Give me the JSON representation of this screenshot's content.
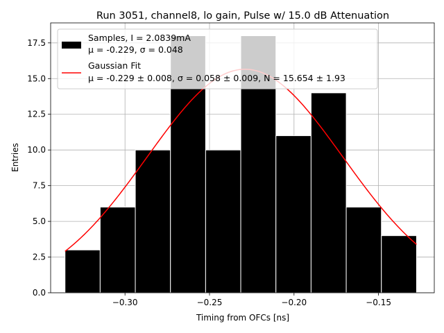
{
  "chart_data": {
    "type": "bar",
    "title": "Run 3051, channel8, lo gain, Pulse w/ 15.0 dB Attenuation",
    "xlabel": "Timing from OFCs [ns]",
    "ylabel": "Entries",
    "xlim": [
      -0.344,
      -0.117
    ],
    "ylim": [
      0,
      18.9
    ],
    "grid": true,
    "legend_position": "top-left",
    "bar_color": "#000000",
    "bar_edge_color": "#ffffff",
    "fit_color": "#ff0000",
    "x_ticks": [
      -0.3,
      -0.25,
      -0.2,
      -0.15
    ],
    "x_tick_labels": [
      "−0.30",
      "−0.25",
      "−0.20",
      "−0.15"
    ],
    "y_ticks": [
      0.0,
      2.5,
      5.0,
      7.5,
      10.0,
      12.5,
      15.0,
      17.5
    ],
    "y_tick_labels": [
      "0.0",
      "2.5",
      "5.0",
      "7.5",
      "10.0",
      "12.5",
      "15.0",
      "17.5"
    ],
    "bins": [
      {
        "left": -0.3355,
        "right": -0.3147,
        "count": 3
      },
      {
        "left": -0.3147,
        "right": -0.2939,
        "count": 6
      },
      {
        "left": -0.2939,
        "right": -0.2731,
        "count": 10
      },
      {
        "left": -0.2731,
        "right": -0.2523,
        "count": 18
      },
      {
        "left": -0.2523,
        "right": -0.2315,
        "count": 10
      },
      {
        "left": -0.2315,
        "right": -0.2107,
        "count": 18
      },
      {
        "left": -0.2107,
        "right": -0.1899,
        "count": 11
      },
      {
        "left": -0.1899,
        "right": -0.1691,
        "count": 14
      },
      {
        "left": -0.1691,
        "right": -0.1483,
        "count": 6
      },
      {
        "left": -0.1483,
        "right": -0.1275,
        "count": 4
      }
    ],
    "fit": {
      "mu": -0.229,
      "sigma": 0.058,
      "N": 15.654,
      "x_range": [
        -0.3355,
        -0.1275
      ]
    },
    "legend": {
      "samples_line1": "Samples, I = 2.0839mA",
      "samples_line2": "μ = -0.229, σ = 0.048",
      "fit_line1": "Gaussian Fit",
      "fit_line2": "μ = -0.229 ± 0.008, σ = 0.058 ± 0.009, N = 15.654 ± 1.93"
    }
  }
}
